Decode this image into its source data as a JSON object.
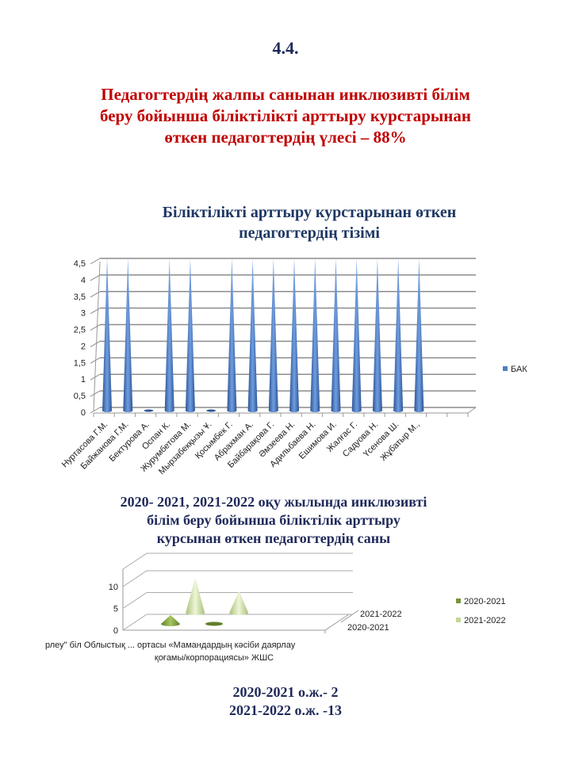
{
  "section_number": "4.4.",
  "heading": [
    "Педагогтердің жалпы санынан инклюзивті білім",
    "беру бойынша біліктілікті арттыру курстарынан",
    "өткен педагогтердің үлесі – 88%"
  ],
  "chart1_title": [
    "Біліктілікті арттыру курстарынан өткен",
    "педагогтердің тізімі"
  ],
  "chart2_title": [
    "2020- 2021, 2021-2022 оқу жылында инклюзивті",
    "білім беру бойынша біліктілік  арттыру",
    "курсынан өткен педагогтердің саны"
  ],
  "footer": [
    "2020-2021 о.ж.- 2",
    "2021-2022 о.ж. -13"
  ],
  "chart_data": [
    {
      "type": "bar",
      "style": "3d-cone",
      "color": "#4f81bd",
      "categories": [
        "Нуртасова Г.М.",
        "Байжанова Г.М.",
        "Бектурова А.",
        "Оспан К.",
        "Журумбетова М.",
        "Мырзабекқызы Ұ.",
        "Қосымбек Г.",
        "Абрахман А.",
        "Байбарақова Г.",
        "Әмзеева Н.",
        "Адильбаева Н.",
        "Ешимова И.",
        "Жалғас Г.",
        "Садуова Н.",
        "Үсенова Ш.",
        "Жұбатыр М.,"
      ],
      "series": [
        {
          "name": "БАК",
          "values": [
            4.5,
            4.5,
            0,
            4.5,
            4.5,
            0,
            4.5,
            4.5,
            4.5,
            4.5,
            4.5,
            4.5,
            4.5,
            4.5,
            4.5,
            4.5
          ]
        }
      ],
      "yticks": [
        "0",
        "0,5",
        "1",
        "1,5",
        "2",
        "2,5",
        "3",
        "3,5",
        "4",
        "4,5"
      ],
      "ylim": [
        0,
        4.5
      ],
      "grid": true,
      "legend": "right"
    },
    {
      "type": "bar",
      "style": "3d-cone",
      "categories": [
        "\"... арлеу\" біліктілікті арттыру ұлттық орталығы",
        "Облыстық ... «Мамандарды кәсіби даярлау қоғамы / корпорациясы» ЖШС"
      ],
      "category_label_text": [
        "рлеу\" біл",
        "Облыстық ... ортасы «Мамандардың кәсіби даярлау",
        "қоғамы/корпорациясы» ЖШС"
      ],
      "series": [
        {
          "name": "2020-2021",
          "color": "#77933c",
          "values": [
            2,
            0
          ]
        },
        {
          "name": "2021-2022",
          "color": "#c3d69b",
          "values": [
            8,
            5
          ]
        }
      ],
      "depth_labels": [
        "2021-2022",
        "2020-2021"
      ],
      "yticks": [
        "0",
        "5",
        "10"
      ],
      "ylim": [
        0,
        10
      ],
      "grid": true,
      "legend": "right"
    }
  ]
}
